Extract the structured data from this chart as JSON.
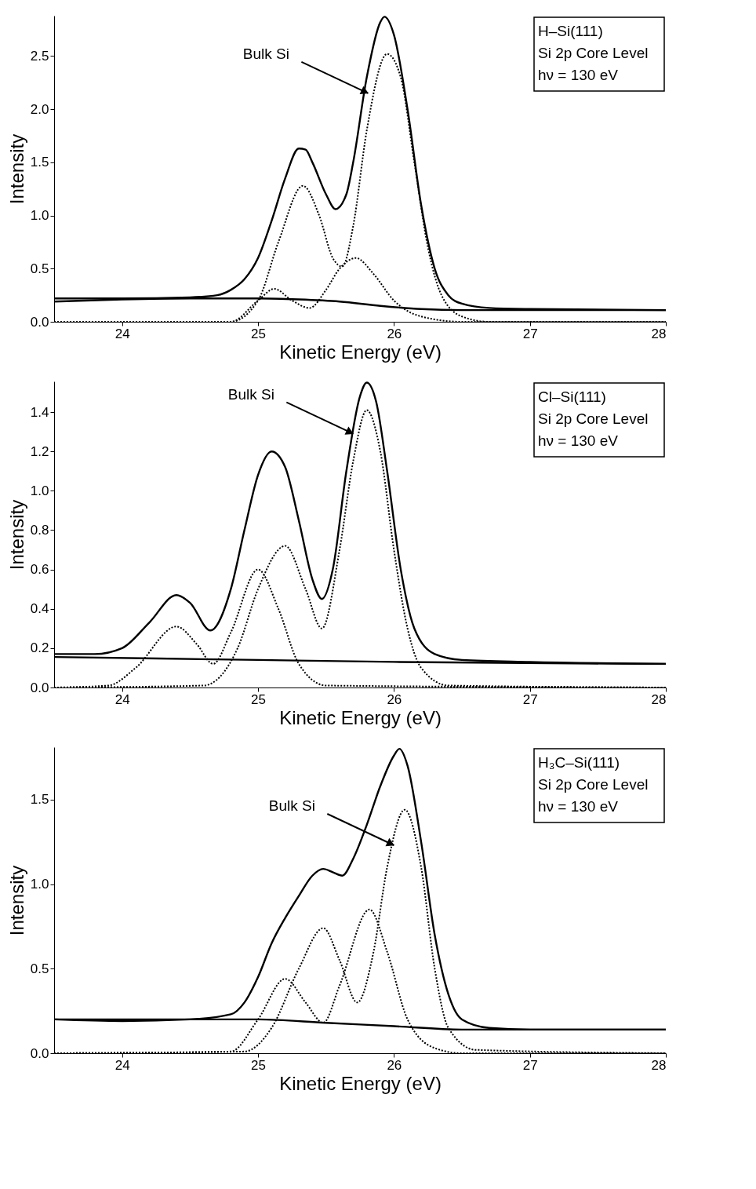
{
  "chart_data": [
    {
      "type": "line",
      "xlabel": "Kinetic Energy (eV)",
      "ylabel": "Intensity",
      "grid": false,
      "xlim": [
        23.5,
        28
      ],
      "xticks": [
        24,
        25,
        26,
        27,
        28
      ],
      "ylim": [
        0,
        2.88
      ],
      "yticks": [
        {
          "value": 0,
          "label": "0.0"
        },
        {
          "value": 0.5,
          "label": "0.5"
        },
        {
          "value": 1,
          "label": "1.0"
        },
        {
          "value": 1.5,
          "label": "1.5"
        },
        {
          "value": 2,
          "label": "2.0"
        },
        {
          "value": 2.5,
          "label": "2.5"
        }
      ],
      "annotations": [
        {
          "text": "Bulk Si",
          "x": 25.81,
          "y": 2.15
        },
        "H–Si(111)",
        "Si 2p Core Level",
        "hν = 130 eV"
      ],
      "series": [
        {
          "color": "#000000",
          "line_style": "solid",
          "x": [
            23.5,
            24,
            24.5,
            24.7,
            24.8,
            24.9,
            25.0,
            25.1,
            25.2,
            25.3,
            25.35,
            25.4,
            25.5,
            25.57,
            25.65,
            25.7,
            25.8,
            25.9,
            25.93,
            26.0,
            26.1,
            26.2,
            26.3,
            26.4,
            26.5,
            26.7,
            27,
            28
          ],
          "values": [
            0.22,
            0.22,
            0.23,
            0.25,
            0.3,
            0.4,
            0.6,
            0.95,
            1.35,
            1.63,
            1.62,
            1.5,
            1.2,
            1.06,
            1.2,
            1.5,
            2.3,
            2.82,
            2.87,
            2.7,
            2.0,
            1.1,
            0.5,
            0.25,
            0.17,
            0.13,
            0.12,
            0.11
          ]
        },
        {
          "color": "#000000",
          "line_style": "solid",
          "x": [
            23.5,
            24,
            24.5,
            25,
            25.3,
            25.6,
            25.9,
            26.2,
            26.5,
            28
          ],
          "values": [
            0.19,
            0.21,
            0.22,
            0.22,
            0.21,
            0.19,
            0.15,
            0.12,
            0.11,
            0.11
          ]
        },
        {
          "color": "#000000",
          "line_style": "dotted",
          "x": [
            23.5,
            24.8,
            25.0,
            25.12,
            25.25,
            25.38,
            25.5,
            25.6,
            25.72,
            25.85,
            26.0,
            26.2,
            26.5,
            28
          ],
          "values": [
            0,
            0,
            0.2,
            0.31,
            0.2,
            0.13,
            0.3,
            0.5,
            0.6,
            0.45,
            0.2,
            0.05,
            0,
            0
          ]
        },
        {
          "color": "#000000",
          "line_style": "dotted",
          "x": [
            23.5,
            24.8,
            25.0,
            25.15,
            25.33,
            25.45,
            25.55,
            25.62,
            25.7,
            25.8,
            25.95,
            26.05,
            26.15,
            26.25,
            26.35,
            26.5,
            26.7,
            28
          ],
          "values": [
            0,
            0,
            0.2,
            0.75,
            1.28,
            1.0,
            0.6,
            0.52,
            0.9,
            1.8,
            2.52,
            2.3,
            1.5,
            0.7,
            0.25,
            0.05,
            0,
            0
          ]
        }
      ]
    },
    {
      "type": "line",
      "xlabel": "Kinetic Energy (eV)",
      "ylabel": "Intensity",
      "grid": false,
      "xlim": [
        23.5,
        28
      ],
      "xticks": [
        24,
        25,
        26,
        27,
        28
      ],
      "ylim": [
        0,
        1.556
      ],
      "yticks": [
        {
          "value": 0,
          "label": "0.0"
        },
        {
          "value": 0.2,
          "label": "0.2"
        },
        {
          "value": 0.4,
          "label": "0.4"
        },
        {
          "value": 0.6,
          "label": "0.6"
        },
        {
          "value": 0.8,
          "label": "0.8"
        },
        {
          "value": 1,
          "label": "1.0"
        },
        {
          "value": 1.2,
          "label": "1.2"
        },
        {
          "value": 1.4,
          "label": "1.4"
        }
      ],
      "annotations": [
        {
          "text": "Bulk Si",
          "x": 25.7,
          "y": 1.29
        },
        "Cl–Si(111)",
        "Si 2p Core Level",
        "hν = 130 eV"
      ],
      "series": [
        {
          "color": "#000000",
          "line_style": "solid",
          "x": [
            23.5,
            23.8,
            24.0,
            24.2,
            24.4,
            24.5,
            24.65,
            24.8,
            24.9,
            25.0,
            25.1,
            25.2,
            25.3,
            25.4,
            25.47,
            25.55,
            25.65,
            25.75,
            25.8,
            25.87,
            25.95,
            26.05,
            26.15,
            26.3,
            26.5,
            27,
            28
          ],
          "values": [
            0.17,
            0.17,
            0.2,
            0.33,
            0.47,
            0.43,
            0.29,
            0.5,
            0.8,
            1.08,
            1.2,
            1.12,
            0.85,
            0.55,
            0.45,
            0.6,
            1.1,
            1.48,
            1.55,
            1.45,
            1.1,
            0.6,
            0.3,
            0.17,
            0.14,
            0.13,
            0.12
          ]
        },
        {
          "color": "#000000",
          "line_style": "solid",
          "x": [
            23.5,
            25,
            26,
            28
          ],
          "values": [
            0.155,
            0.14,
            0.13,
            0.12
          ]
        },
        {
          "color": "#000000",
          "line_style": "dotted",
          "x": [
            23.5,
            23.9,
            24.1,
            24.4,
            24.55,
            24.67,
            24.8,
            25.0,
            25.15,
            25.3,
            25.5,
            28
          ],
          "values": [
            0,
            0.01,
            0.1,
            0.31,
            0.22,
            0.12,
            0.28,
            0.6,
            0.4,
            0.12,
            0.01,
            0
          ]
        },
        {
          "color": "#000000",
          "line_style": "dotted",
          "x": [
            23.5,
            24.6,
            24.85,
            25.0,
            25.2,
            25.35,
            25.47,
            25.6,
            25.7,
            25.8,
            25.9,
            26.0,
            26.1,
            26.2,
            26.4,
            28
          ],
          "values": [
            0,
            0.01,
            0.2,
            0.5,
            0.72,
            0.5,
            0.3,
            0.7,
            1.15,
            1.41,
            1.2,
            0.7,
            0.3,
            0.1,
            0.01,
            0
          ]
        }
      ]
    },
    {
      "type": "line",
      "xlabel": "Kinetic Energy (eV)",
      "ylabel": "Intensity",
      "grid": false,
      "xlim": [
        23.5,
        28
      ],
      "xticks": [
        24,
        25,
        26,
        27,
        28
      ],
      "ylim": [
        0,
        1.81
      ],
      "yticks": [
        {
          "value": 0,
          "label": "0.0"
        },
        {
          "value": 0.5,
          "label": "0.5"
        },
        {
          "value": 1,
          "label": "1.0"
        },
        {
          "value": 1.5,
          "label": "1.5"
        }
      ],
      "annotations": [
        {
          "text": "Bulk Si",
          "x": 26.0,
          "y": 1.23
        },
        "H₃C–Si(111)",
        "Si 2p Core Level",
        "hν = 130 eV"
      ],
      "series": [
        {
          "color": "#000000",
          "line_style": "solid",
          "x": [
            23.5,
            24,
            24.5,
            24.8,
            24.9,
            25.0,
            25.1,
            25.2,
            25.3,
            25.4,
            25.48,
            25.55,
            25.62,
            25.7,
            25.8,
            25.9,
            26.0,
            26.04,
            26.1,
            26.2,
            26.3,
            26.4,
            26.5,
            26.7,
            27,
            28
          ],
          "values": [
            0.2,
            0.19,
            0.2,
            0.23,
            0.3,
            0.45,
            0.65,
            0.8,
            0.93,
            1.05,
            1.09,
            1.07,
            1.05,
            1.15,
            1.35,
            1.58,
            1.76,
            1.8,
            1.7,
            1.25,
            0.7,
            0.35,
            0.2,
            0.15,
            0.14,
            0.14
          ]
        },
        {
          "color": "#000000",
          "line_style": "solid",
          "x": [
            23.5,
            25,
            25.5,
            26,
            26.5,
            28
          ],
          "values": [
            0.2,
            0.2,
            0.18,
            0.16,
            0.14,
            0.14
          ]
        },
        {
          "color": "#000000",
          "line_style": "dotted",
          "x": [
            23.5,
            24.8,
            25.0,
            25.2,
            25.35,
            25.48,
            25.6,
            25.82,
            25.95,
            26.1,
            26.3,
            26.5,
            28
          ],
          "values": [
            0,
            0.01,
            0.2,
            0.44,
            0.3,
            0.18,
            0.4,
            0.85,
            0.6,
            0.2,
            0.03,
            0,
            0
          ]
        },
        {
          "color": "#000000",
          "line_style": "dotted",
          "x": [
            23.5,
            24.9,
            25.1,
            25.3,
            25.48,
            25.6,
            25.73,
            25.85,
            25.95,
            26.08,
            26.2,
            26.3,
            26.4,
            26.6,
            28
          ],
          "values": [
            0,
            0.01,
            0.15,
            0.5,
            0.74,
            0.55,
            0.3,
            0.6,
            1.1,
            1.44,
            1.1,
            0.5,
            0.15,
            0.02,
            0
          ]
        }
      ]
    }
  ]
}
